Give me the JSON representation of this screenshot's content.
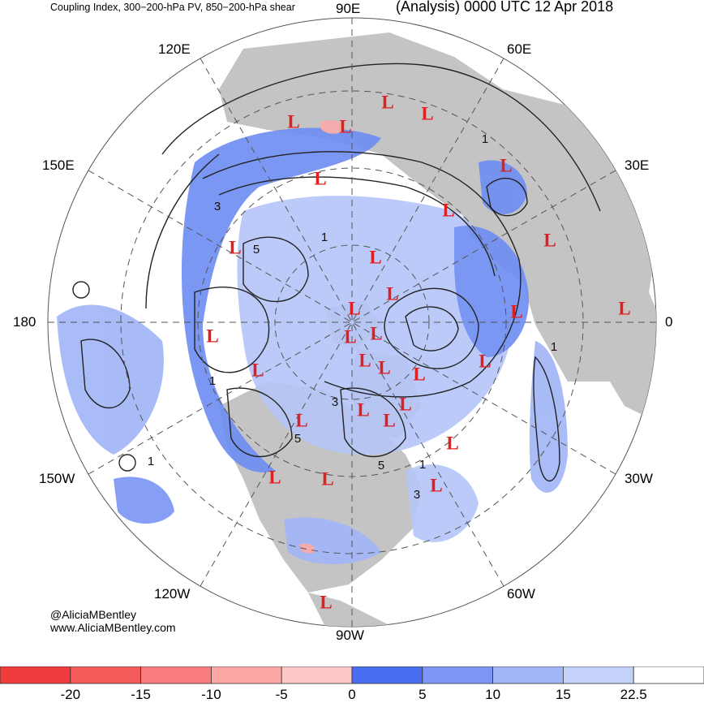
{
  "header": {
    "left_title": "Coupling Index, 300−200-hPa PV, 850−200-hPa shear",
    "right_title": "(Analysis) 0000 UTC 12 Apr 2018"
  },
  "longitude_labels": {
    "lon_90e": "90E",
    "lon_60e": "60E",
    "lon_30e": "30E",
    "lon_0": "0",
    "lon_30w": "30W",
    "lon_60w": "60W",
    "lon_90w": "90W",
    "lon_120w": "120W",
    "lon_150w": "150W",
    "lon_180": "180",
    "lon_150e": "150E",
    "lon_120e": "120E"
  },
  "contour_labels": [
    "1",
    "3",
    "5",
    "1",
    "1",
    "3",
    "5",
    "1",
    "1",
    "5",
    "1",
    "3"
  ],
  "low_pressure_symbol": "L",
  "low_count": 31,
  "credits": {
    "handle": "@AliciaMBentley",
    "website": "www.AliciaMBentley.com"
  },
  "colorbar": {
    "tick_labels": [
      "-20",
      "-15",
      "-10",
      "-5",
      "0",
      "5",
      "10",
      "15",
      "22.5"
    ],
    "colors": [
      "#f03c3c",
      "#f45a5a",
      "#f87c7c",
      "#fca6a6",
      "#fcc8c8",
      "#4a6ef0",
      "#7c96f4",
      "#a2b6f6",
      "#c4d2fa",
      "#ffffff"
    ]
  },
  "map_colors": {
    "land": "#c4c4c4",
    "ocean": "#ffffff",
    "coupling_blue": "#6f8ff2",
    "coupling_light_blue": "#b6c6f8",
    "coupling_pink": "#f7a9a9",
    "low_marker": "#e02020",
    "contour": "#222222"
  }
}
